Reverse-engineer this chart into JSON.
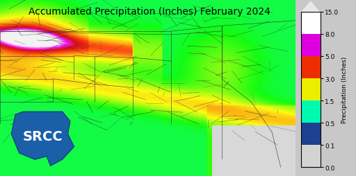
{
  "title": "Accumulated Precipitation (Inches) February 2024",
  "title_fontsize": 10,
  "colorbar_label": "Precipitation (Inches)",
  "colorbar_ticks": [
    0.0,
    0.1,
    0.5,
    1.5,
    3.0,
    5.0,
    8.0,
    15.0
  ],
  "colorbar_tick_labels": [
    "0.0",
    "0.1",
    "0.5",
    "1.5",
    "3.0",
    "5.0",
    "8.0",
    "15.0"
  ],
  "colorbar_colors": [
    "#d3d3d3",
    "#1a1a6e",
    "#2b6fd4",
    "#42d4f4",
    "#4dfa4d",
    "#f5f542",
    "#fa8c00",
    "#e01010",
    "#e000e0",
    "#f0f0f0"
  ],
  "bg_color": "#c8c8c8",
  "map_bg": "#dcdcdc",
  "srcc_logo_color": "#1a5fa8",
  "srcc_text_color": "#ffffff",
  "fig_width": 5.12,
  "fig_height": 2.55,
  "dpi": 100
}
